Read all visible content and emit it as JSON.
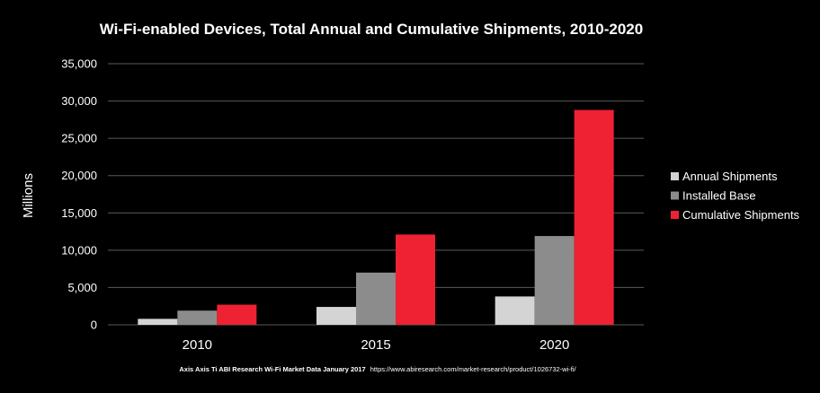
{
  "chart_data": {
    "type": "bar",
    "title": "Wi-Fi-enabled Devices, Total Annual and Cumulative Shipments, 2010-2020",
    "xlabel": "",
    "ylabel": "Millions",
    "ylim": [
      0,
      35000
    ],
    "yticks": [
      0,
      5000,
      10000,
      15000,
      20000,
      25000,
      30000,
      35000
    ],
    "ytick_labels": [
      "0",
      "5,000",
      "10,000",
      "15,000",
      "20,000",
      "25,000",
      "30,000",
      "35,000"
    ],
    "categories": [
      "2010",
      "2015",
      "2020"
    ],
    "series": [
      {
        "name": "Annual Shipments",
        "color": "#d4d4d4",
        "values": [
          800,
          2400,
          3800
        ]
      },
      {
        "name": "Installed Base",
        "color": "#8c8c8c",
        "values": [
          1900,
          7000,
          11900
        ]
      },
      {
        "name": "Cumulative Shipments",
        "color": "#ee2233",
        "values": [
          2700,
          12100,
          28800
        ]
      }
    ],
    "grid": true,
    "legend_position": "right",
    "source_bold": "Axis Axis Ti ABI Research Wi-Fi Market Data January 2017",
    "source_url": "https://www.abiresearch.com/market-research/product/1026732-wi-fi/"
  }
}
